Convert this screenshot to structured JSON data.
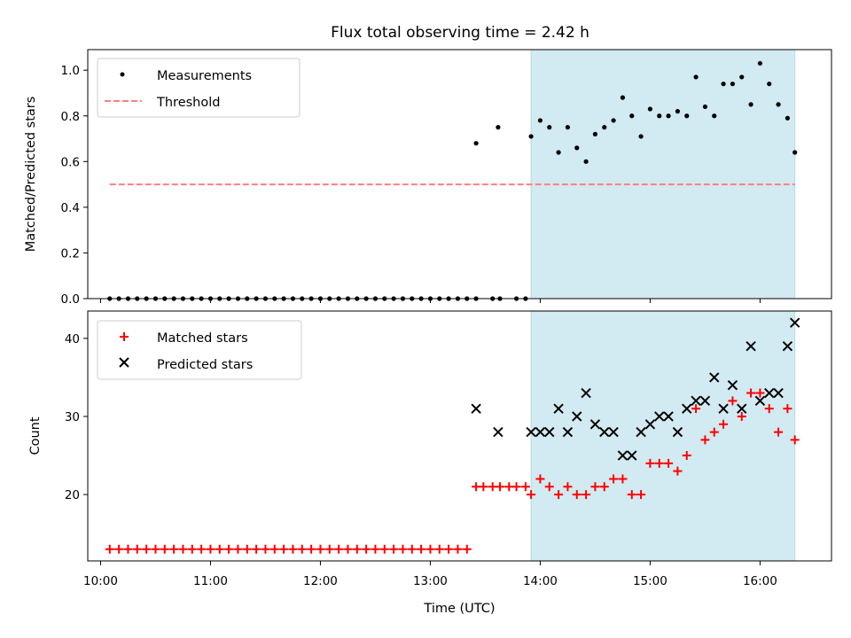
{
  "title": "Flux total observing time = 2.42 h",
  "xlabel": "Time (UTC)",
  "x_ticks": [
    "10:00",
    "11:00",
    "12:00",
    "13:00",
    "14:00",
    "15:00",
    "16:00"
  ],
  "colors": {
    "shade": "#add8e6",
    "threshold": "#ff7f7f",
    "matched": "#ff0000",
    "predicted": "#000000",
    "measurements": "#000000"
  },
  "chart_data": [
    {
      "type": "scatter",
      "xlabel": "",
      "ylabel": "Matched/Predicted stars",
      "xlim": [
        "09:53",
        "16:39"
      ],
      "ylim": [
        0,
        1.09
      ],
      "y_ticks": [
        "0.0",
        "0.2",
        "0.4",
        "0.6",
        "0.8",
        "1.0"
      ],
      "legend": {
        "position": "upper-left",
        "entries": [
          "Measurements",
          "Threshold"
        ]
      },
      "shaded_region": [
        "13:55",
        "16:19"
      ],
      "threshold": {
        "y": 0.5,
        "x_range": [
          "10:05",
          "16:19"
        ]
      },
      "series": [
        {
          "name": "Measurements",
          "x": [
            "10:05",
            "10:10",
            "10:15",
            "10:20",
            "10:25",
            "10:30",
            "10:35",
            "10:40",
            "10:45",
            "10:50",
            "10:55",
            "11:00",
            "11:05",
            "11:10",
            "11:15",
            "11:20",
            "11:25",
            "11:30",
            "11:35",
            "11:40",
            "11:45",
            "11:50",
            "11:55",
            "12:00",
            "12:05",
            "12:10",
            "12:15",
            "12:20",
            "12:25",
            "12:30",
            "12:35",
            "12:40",
            "12:45",
            "12:50",
            "12:55",
            "13:00",
            "13:05",
            "13:10",
            "13:15",
            "13:20",
            "13:25",
            "13:34",
            "13:38",
            "13:47",
            "13:52",
            "13:55",
            "14:00",
            "14:05",
            "14:10",
            "14:15",
            "14:20",
            "14:25",
            "14:30",
            "14:35",
            "14:40",
            "14:45",
            "14:50",
            "14:55",
            "15:00",
            "15:05",
            "15:10",
            "15:15",
            "15:20",
            "15:25",
            "15:30",
            "15:35",
            "15:40",
            "15:45",
            "15:50",
            "15:55",
            "16:00",
            "16:05",
            "16:10",
            "16:15",
            "16:19"
          ],
          "y": [
            0,
            0,
            0,
            0,
            0,
            0,
            0,
            0,
            0,
            0,
            0,
            0,
            0,
            0,
            0,
            0,
            0,
            0,
            0,
            0,
            0,
            0,
            0,
            0,
            0,
            0,
            0,
            0,
            0,
            0,
            0,
            0,
            0,
            0,
            0,
            0,
            0,
            0,
            0,
            0,
            0,
            0,
            0,
            0,
            0,
            0.71,
            0.78,
            0.75,
            0.64,
            0.75,
            0.66,
            0.6,
            0.72,
            0.75,
            0.78,
            0.88,
            0.8,
            0.71,
            0.83,
            0.8,
            0.8,
            0.82,
            0.8,
            0.97,
            0.84,
            0.8,
            0.94,
            0.94,
            0.97,
            0.85,
            1.03,
            0.94,
            0.85,
            0.79,
            0.64
          ],
          "extra_points": {
            "x": [
              "13:25",
              "13:37"
            ],
            "y": [
              0.68,
              0.75
            ]
          }
        }
      ]
    },
    {
      "type": "scatter",
      "xlabel": "Time (UTC)",
      "ylabel": "Count",
      "xlim": [
        "09:53",
        "16:39"
      ],
      "ylim": [
        11.5,
        43.5
      ],
      "y_ticks": [
        "20",
        "30",
        "40"
      ],
      "legend": {
        "position": "upper-left",
        "entries": [
          "Matched stars",
          "Predicted stars"
        ]
      },
      "shaded_region": [
        "13:55",
        "16:19"
      ],
      "series": [
        {
          "name": "Matched stars",
          "marker": "plus",
          "x": [
            "10:05",
            "10:10",
            "10:15",
            "10:20",
            "10:25",
            "10:30",
            "10:35",
            "10:40",
            "10:45",
            "10:50",
            "10:55",
            "11:00",
            "11:05",
            "11:10",
            "11:15",
            "11:20",
            "11:25",
            "11:30",
            "11:35",
            "11:40",
            "11:45",
            "11:50",
            "11:55",
            "12:00",
            "12:05",
            "12:10",
            "12:15",
            "12:20",
            "12:25",
            "12:30",
            "12:35",
            "12:40",
            "12:45",
            "12:50",
            "12:55",
            "13:00",
            "13:05",
            "13:10",
            "13:15",
            "13:20",
            "13:25",
            "13:29",
            "13:34",
            "13:38",
            "13:43",
            "13:47",
            "13:52",
            "13:55",
            "14:00",
            "14:05",
            "14:10",
            "14:15",
            "14:20",
            "14:25",
            "14:30",
            "14:35",
            "14:40",
            "14:45",
            "14:50",
            "14:55",
            "15:00",
            "15:05",
            "15:10",
            "15:15",
            "15:20",
            "15:25",
            "15:30",
            "15:35",
            "15:40",
            "15:45",
            "15:50",
            "15:55",
            "16:00",
            "16:05",
            "16:10",
            "16:15",
            "16:19"
          ],
          "y": [
            13,
            13,
            13,
            13,
            13,
            13,
            13,
            13,
            13,
            13,
            13,
            13,
            13,
            13,
            13,
            13,
            13,
            13,
            13,
            13,
            13,
            13,
            13,
            13,
            13,
            13,
            13,
            13,
            13,
            13,
            13,
            13,
            13,
            13,
            13,
            13,
            13,
            13,
            13,
            13,
            21,
            21,
            21,
            21,
            21,
            21,
            21,
            20,
            22,
            21,
            20,
            21,
            20,
            20,
            21,
            21,
            22,
            22,
            20,
            20,
            24,
            24,
            24,
            23,
            25,
            31,
            27,
            28,
            29,
            32,
            30,
            33,
            33,
            31,
            28,
            31,
            27
          ]
        },
        {
          "name": "Predicted stars",
          "marker": "x",
          "x": [
            "13:25",
            "13:37",
            "13:55",
            "14:00",
            "14:05",
            "14:10",
            "14:15",
            "14:20",
            "14:25",
            "14:30",
            "14:35",
            "14:40",
            "14:45",
            "14:50",
            "14:55",
            "15:00",
            "15:05",
            "15:10",
            "15:15",
            "15:20",
            "15:25",
            "15:30",
            "15:35",
            "15:40",
            "15:45",
            "15:50",
            "15:55",
            "16:00",
            "16:05",
            "16:10",
            "16:15",
            "16:19"
          ],
          "y": [
            31,
            28,
            28,
            28,
            28,
            31,
            28,
            30,
            33,
            29,
            28,
            28,
            25,
            25,
            28,
            29,
            30,
            30,
            28,
            31,
            32,
            32,
            35,
            31,
            34,
            31,
            39,
            32,
            33,
            33,
            39,
            42
          ]
        }
      ]
    }
  ]
}
